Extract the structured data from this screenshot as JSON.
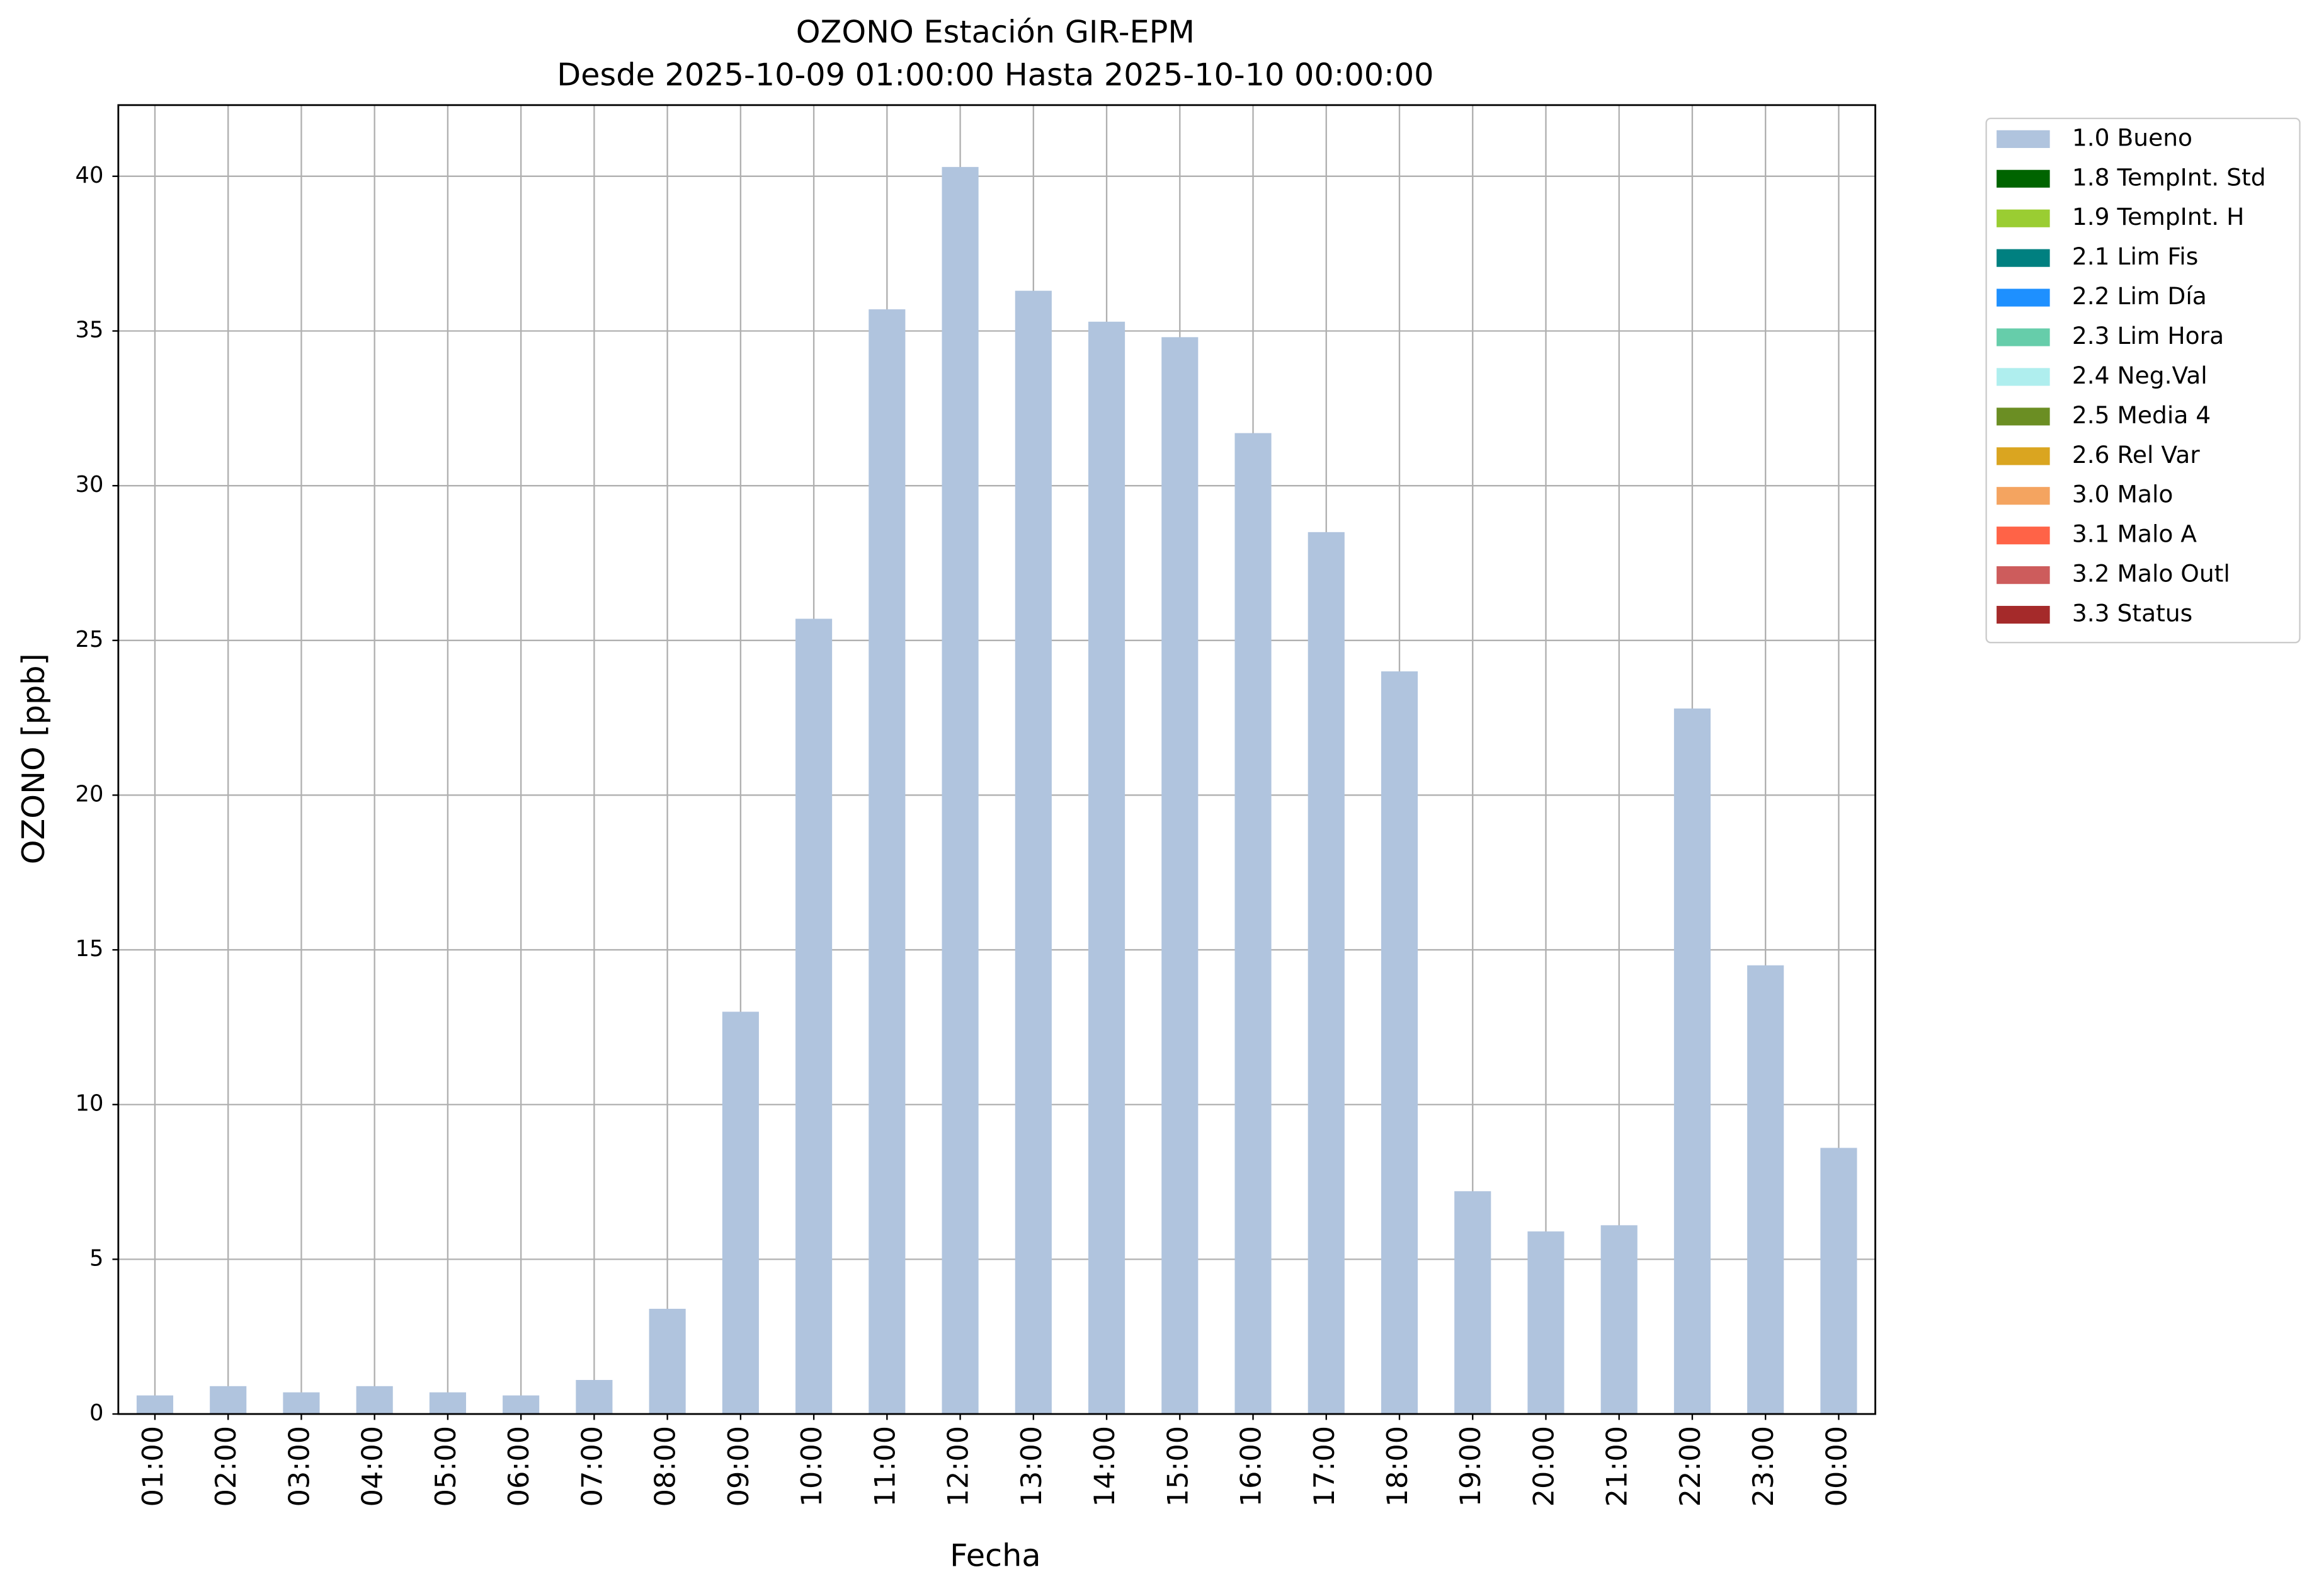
{
  "chart_data": {
    "type": "bar",
    "title": "OZONO Estación GIR-EPM",
    "subtitle": "Desde 2025-10-09 01:00:00 Hasta 2025-10-10 00:00:00",
    "x_label": "Fecha",
    "y_label": "OZONO [ppb]",
    "categories": [
      "01:00",
      "02:00",
      "03:00",
      "04:00",
      "05:00",
      "06:00",
      "07:00",
      "08:00",
      "09:00",
      "10:00",
      "11:00",
      "12:00",
      "13:00",
      "14:00",
      "15:00",
      "16:00",
      "17:00",
      "18:00",
      "19:00",
      "20:00",
      "21:00",
      "22:00",
      "23:00",
      "00:00"
    ],
    "series": [
      {
        "name": "1.0 Bueno",
        "color": "#b0c4de",
        "values": [
          0.6,
          0.9,
          0.7,
          0.9,
          0.7,
          0.6,
          1.1,
          3.4,
          13.0,
          25.7,
          35.7,
          40.3,
          36.3,
          35.3,
          34.8,
          31.7,
          28.5,
          24.0,
          7.2,
          5.9,
          6.1,
          22.8,
          14.5,
          8.6
        ]
      },
      {
        "name": "1.8 TempInt. Std",
        "color": "#006400",
        "values": [
          null,
          null,
          null,
          null,
          null,
          null,
          null,
          null,
          null,
          null,
          null,
          null,
          null,
          null,
          null,
          null,
          null,
          null,
          null,
          null,
          null,
          null,
          null,
          null
        ]
      },
      {
        "name": "1.9 TempInt. H",
        "color": "#9acd32",
        "values": [
          null,
          null,
          null,
          null,
          null,
          null,
          null,
          null,
          null,
          null,
          null,
          null,
          null,
          null,
          null,
          null,
          null,
          null,
          null,
          null,
          null,
          null,
          null,
          null
        ]
      },
      {
        "name": "2.1 Lim Fis",
        "color": "#008080",
        "values": [
          null,
          null,
          null,
          null,
          null,
          null,
          null,
          null,
          null,
          null,
          null,
          null,
          null,
          null,
          null,
          null,
          null,
          null,
          null,
          null,
          null,
          null,
          null,
          null
        ]
      },
      {
        "name": "2.2 Lim Día",
        "color": "#1e90ff",
        "values": [
          null,
          null,
          null,
          null,
          null,
          null,
          null,
          null,
          null,
          null,
          null,
          null,
          null,
          null,
          null,
          null,
          null,
          null,
          null,
          null,
          null,
          null,
          null,
          null
        ]
      },
      {
        "name": "2.3 Lim Hora",
        "color": "#66cdaa",
        "values": [
          null,
          null,
          null,
          null,
          null,
          null,
          null,
          null,
          null,
          null,
          null,
          null,
          null,
          null,
          null,
          null,
          null,
          null,
          null,
          null,
          null,
          null,
          null,
          null
        ]
      },
      {
        "name": "2.4 Neg.Val",
        "color": "#afeeee",
        "values": [
          null,
          null,
          null,
          null,
          null,
          null,
          null,
          null,
          null,
          null,
          null,
          null,
          null,
          null,
          null,
          null,
          null,
          null,
          null,
          null,
          null,
          null,
          null,
          null
        ]
      },
      {
        "name": "2.5 Media 4",
        "color": "#6b8e23",
        "values": [
          null,
          null,
          null,
          null,
          null,
          null,
          null,
          null,
          null,
          null,
          null,
          null,
          null,
          null,
          null,
          null,
          null,
          null,
          null,
          null,
          null,
          null,
          null,
          null
        ]
      },
      {
        "name": "2.6 Rel Var",
        "color": "#daa520",
        "values": [
          null,
          null,
          null,
          null,
          null,
          null,
          null,
          null,
          null,
          null,
          null,
          null,
          null,
          null,
          null,
          null,
          null,
          null,
          null,
          null,
          null,
          null,
          null,
          null
        ]
      },
      {
        "name": "3.0 Malo",
        "color": "#f4a460",
        "values": [
          null,
          null,
          null,
          null,
          null,
          null,
          null,
          null,
          null,
          null,
          null,
          null,
          null,
          null,
          null,
          null,
          null,
          null,
          null,
          null,
          null,
          null,
          null,
          null
        ]
      },
      {
        "name": "3.1 Malo A",
        "color": "#ff6347",
        "values": [
          null,
          null,
          null,
          null,
          null,
          null,
          null,
          null,
          null,
          null,
          null,
          null,
          null,
          null,
          null,
          null,
          null,
          null,
          null,
          null,
          null,
          null,
          null,
          null
        ]
      },
      {
        "name": "3.2 Malo Outl",
        "color": "#cd5c5c",
        "values": [
          null,
          null,
          null,
          null,
          null,
          null,
          null,
          null,
          null,
          null,
          null,
          null,
          null,
          null,
          null,
          null,
          null,
          null,
          null,
          null,
          null,
          null,
          null,
          null
        ]
      },
      {
        "name": "3.3 Status",
        "color": "#a52a2a",
        "values": [
          null,
          null,
          null,
          null,
          null,
          null,
          null,
          null,
          null,
          null,
          null,
          null,
          null,
          null,
          null,
          null,
          null,
          null,
          null,
          null,
          null,
          null,
          null,
          null
        ]
      }
    ],
    "stacked": true,
    "ylim": [
      0,
      42.3
    ],
    "yticks": [
      0,
      5,
      10,
      15,
      20,
      25,
      30,
      35,
      40
    ],
    "grid": true,
    "legend": "outside-upper-right"
  }
}
